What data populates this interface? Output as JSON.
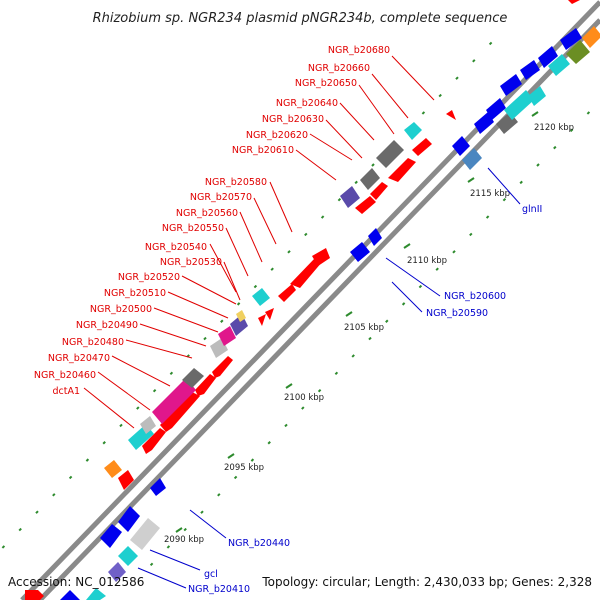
{
  "title": "Rhizobium sp. NGR234 plasmid pNGR234b, complete sequence",
  "footer": {
    "accession": "Accession: NC_012586",
    "summary": "Topology: circular; Length: 2,430,033 bp; Genes: 2,328"
  },
  "colors": {
    "forward_label": "#e00000",
    "reverse_label": "#0000cc",
    "tick_mark": "#2e8b2e",
    "backbone": "#8a8a8a"
  },
  "ticks": [
    "2090 kbp",
    "2095 kbp",
    "2100 kbp",
    "2105 kbp",
    "2110 kbp",
    "2115 kbp",
    "2120 kbp"
  ],
  "forward_labels": [
    "NGR_b20680",
    "NGR_b20660",
    "NGR_b20650",
    "NGR_b20640",
    "NGR_b20630",
    "NGR_b20620",
    "NGR_b20610",
    "NGR_b20580",
    "NGR_b20570",
    "NGR_b20560",
    "NGR_b20550",
    "NGR_b20540",
    "NGR_b20530",
    "NGR_b20520",
    "NGR_b20510",
    "NGR_b20500",
    "NGR_b20490",
    "NGR_b20480",
    "NGR_b20470",
    "NGR_b20460",
    "dctA1"
  ],
  "reverse_labels": [
    "glnII",
    "NGR_b20600",
    "NGR_b20590",
    "NGR_b20440",
    "gcl",
    "NGR_b20410"
  ]
}
